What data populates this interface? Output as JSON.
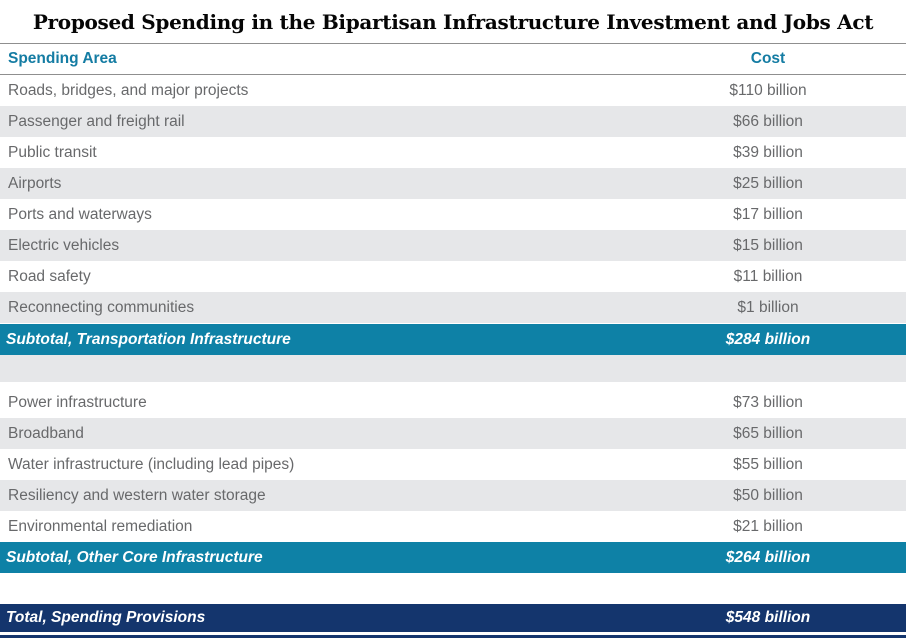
{
  "title": "Proposed Spending in the Bipartisan Infrastructure Investment and Jobs Act",
  "columns": {
    "area": "Spending Area",
    "cost": "Cost"
  },
  "sections": [
    {
      "rows": [
        {
          "area": "Roads, bridges, and major projects",
          "cost": "$110 billion"
        },
        {
          "area": "Passenger and freight rail",
          "cost": "$66 billion"
        },
        {
          "area": "Public transit",
          "cost": "$39 billion"
        },
        {
          "area": "Airports",
          "cost": "$25 billion"
        },
        {
          "area": "Ports and waterways",
          "cost": "$17 billion"
        },
        {
          "area": "Electric vehicles",
          "cost": "$15 billion"
        },
        {
          "area": "Road safety",
          "cost": "$11 billion"
        },
        {
          "area": "Reconnecting communities",
          "cost": "$1 billion"
        }
      ],
      "subtotal": {
        "area": "Subtotal, Transportation Infrastructure",
        "cost": "$284 billion"
      }
    },
    {
      "rows": [
        {
          "area": "Power infrastructure",
          "cost": "$73 billion"
        },
        {
          "area": "Broadband",
          "cost": "$65 billion"
        },
        {
          "area": "Water infrastructure (including lead pipes)",
          "cost": "$55 billion"
        },
        {
          "area": "Resiliency and western water storage",
          "cost": "$50 billion"
        },
        {
          "area": "Environmental remediation",
          "cost": "$21 billion"
        }
      ],
      "subtotal": {
        "area": "Subtotal, Other Core Infrastructure",
        "cost": "$264 billion"
      }
    }
  ],
  "total": {
    "area": "Total, Spending Provisions",
    "cost": "$548 billion"
  },
  "colors": {
    "header_text_teal": "#147ca3",
    "subtotal_bg_teal": "#0e81a6",
    "total_bg_navy": "#14356d",
    "row_alt_gray": "#e6e7e9",
    "row_text_gray": "#68696b",
    "header_rule_gray": "#8f8f8f"
  },
  "chart_data": {
    "type": "table",
    "title": "Proposed Spending in the Bipartisan Infrastructure Investment and Jobs Act",
    "columns": [
      "Spending Area",
      "Cost"
    ],
    "unit": "billions USD",
    "categories": [
      "Roads, bridges, and major projects",
      "Passenger and freight rail",
      "Public transit",
      "Airports",
      "Ports and waterways",
      "Electric vehicles",
      "Road safety",
      "Reconnecting communities",
      "Power infrastructure",
      "Broadband",
      "Water infrastructure (including lead pipes)",
      "Resiliency and western water storage",
      "Environmental remediation"
    ],
    "values": [
      110,
      66,
      39,
      25,
      17,
      15,
      11,
      1,
      73,
      65,
      55,
      50,
      21
    ],
    "subtotals": [
      {
        "label": "Subtotal, Transportation Infrastructure",
        "value": 284
      },
      {
        "label": "Subtotal, Other Core Infrastructure",
        "value": 264
      }
    ],
    "total": {
      "label": "Total, Spending Provisions",
      "value": 548
    }
  }
}
